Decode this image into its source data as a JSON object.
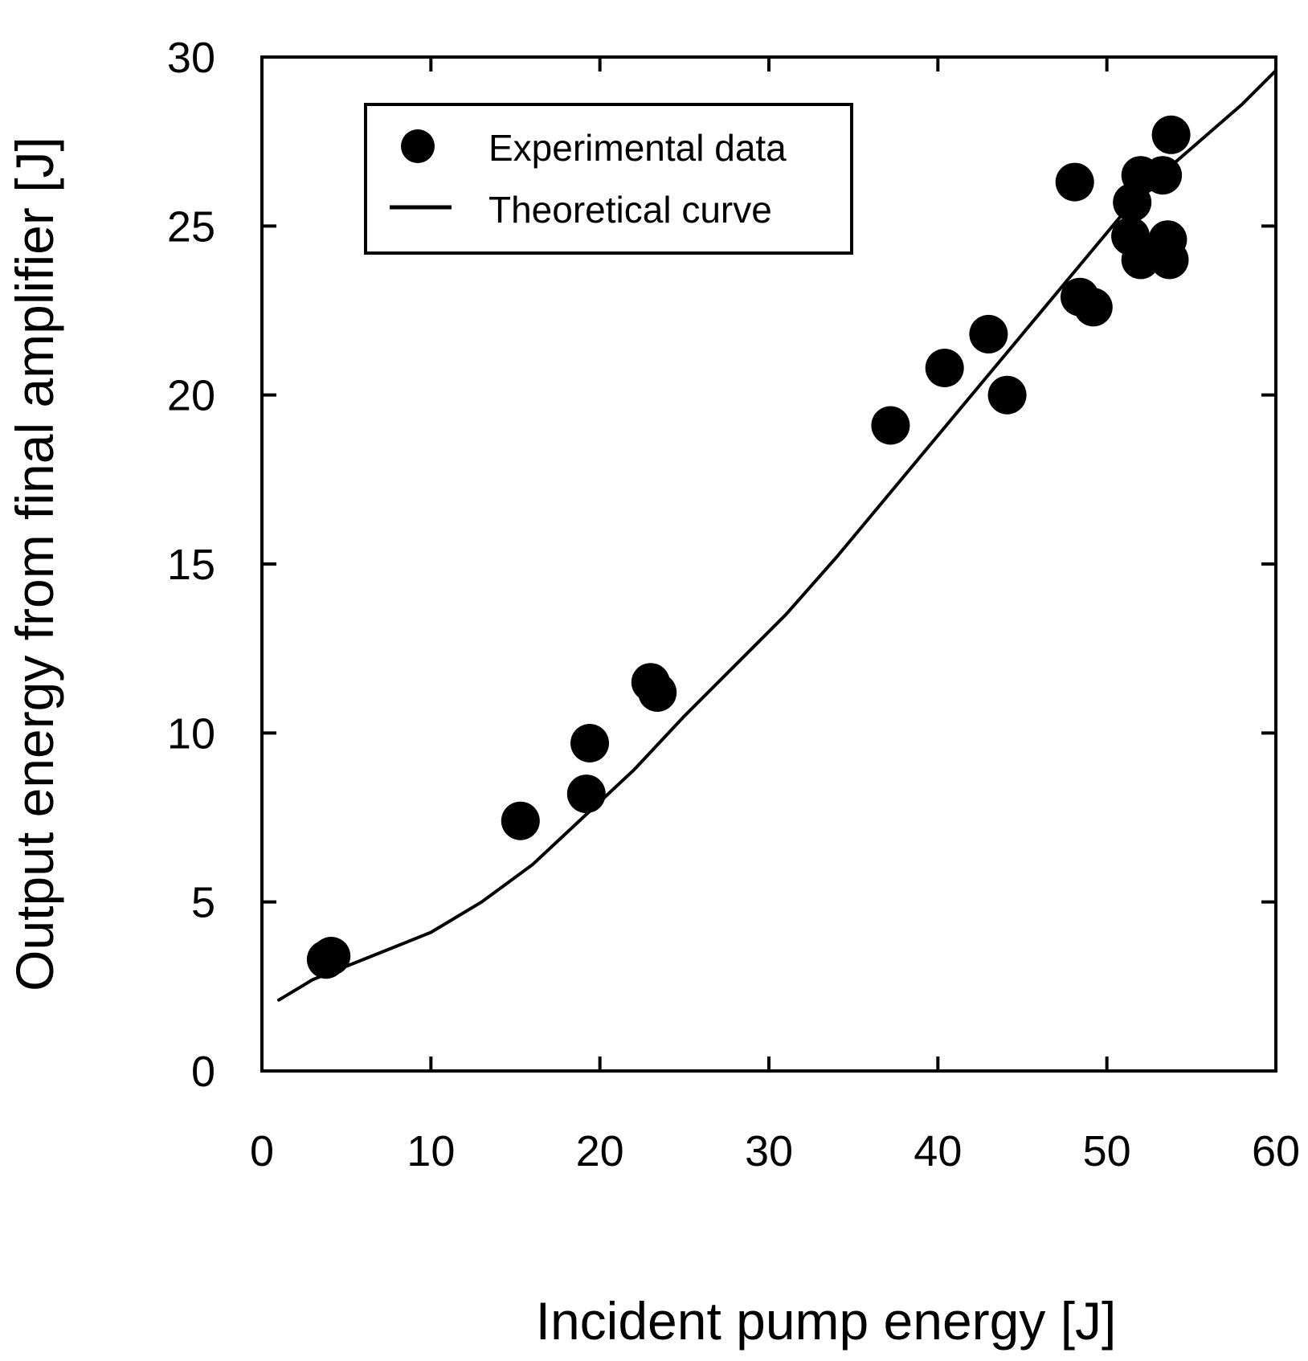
{
  "chart_data": {
    "type": "scatter",
    "title": "",
    "xlabel": "Incident pump energy [J]",
    "ylabel": "Output energy from final amplifier [J]",
    "xlim": [
      0,
      60
    ],
    "ylim": [
      0,
      30
    ],
    "xticks": [
      0,
      10,
      20,
      30,
      40,
      50,
      60
    ],
    "yticks": [
      0,
      5,
      10,
      15,
      20,
      25,
      30
    ],
    "x_tick_labels": [
      "0",
      "10",
      "20",
      "30",
      "40",
      "50",
      "60"
    ],
    "y_tick_labels": [
      "0",
      "5",
      "10",
      "15",
      "20",
      "25",
      "30"
    ],
    "grid": false,
    "legend_position": "top-left",
    "series": [
      {
        "name": "Experimental data",
        "kind": "scatter",
        "color": "#000000",
        "x": [
          3.8,
          4.1,
          15.3,
          19.2,
          19.4,
          23.0,
          23.4,
          37.2,
          40.4,
          43.0,
          44.1,
          48.1,
          48.4,
          49.2,
          51.4,
          51.5,
          52.0,
          52.0,
          53.3,
          53.6,
          53.7,
          53.8
        ],
        "y": [
          3.3,
          3.4,
          7.4,
          8.2,
          9.7,
          11.5,
          11.2,
          19.1,
          20.8,
          21.8,
          20.0,
          26.3,
          22.9,
          22.6,
          24.7,
          25.7,
          24.0,
          26.5,
          26.5,
          24.6,
          24.0,
          27.7
        ]
      },
      {
        "name": "Theoretical curve",
        "kind": "line",
        "color": "#000000",
        "x": [
          1,
          3,
          5,
          8,
          10,
          13,
          16,
          19,
          22,
          25,
          28,
          31,
          34,
          37,
          40,
          43,
          46,
          49,
          52,
          55,
          58,
          60
        ],
        "y": [
          2.1,
          2.7,
          3.1,
          3.7,
          4.1,
          5.0,
          6.1,
          7.5,
          8.9,
          10.5,
          12.0,
          13.5,
          15.2,
          17.0,
          18.8,
          20.6,
          22.4,
          24.2,
          26.0,
          27.3,
          28.6,
          29.6
        ]
      }
    ]
  }
}
